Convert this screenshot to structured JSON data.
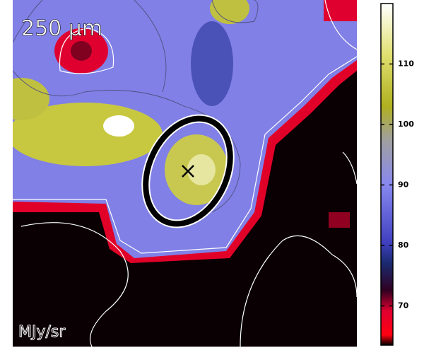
{
  "chart_data": {
    "type": "image",
    "title": "250 μm",
    "unit_label": "MJy/sr",
    "clim": [
      63.5,
      120
    ],
    "cticks": [
      70,
      80,
      90,
      100,
      110
    ]
  }
}
